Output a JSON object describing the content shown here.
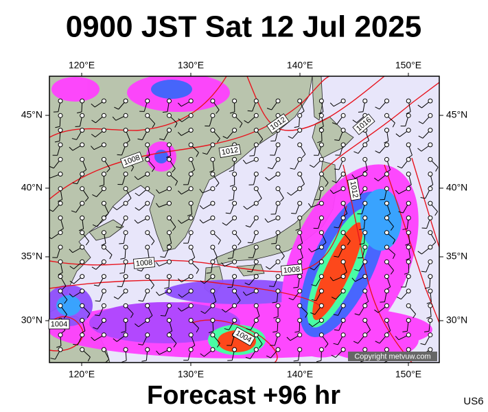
{
  "header": {
    "title": "0900 JST Sat 12 Jul 2025"
  },
  "map": {
    "lon_labels": [
      "120°E",
      "130°E",
      "140°E",
      "150°E"
    ],
    "lat_labels": [
      "45°N",
      "40°N",
      "35°N",
      "30°N"
    ],
    "isobar_labels": [
      "1008",
      "1012",
      "1012",
      "1016",
      "1012",
      "1008",
      "1008",
      "1004",
      "1004"
    ],
    "copyright": "Copyright metvuw.com"
  },
  "footer": {
    "forecast": "Forecast +96 hr",
    "code": "US6"
  }
}
